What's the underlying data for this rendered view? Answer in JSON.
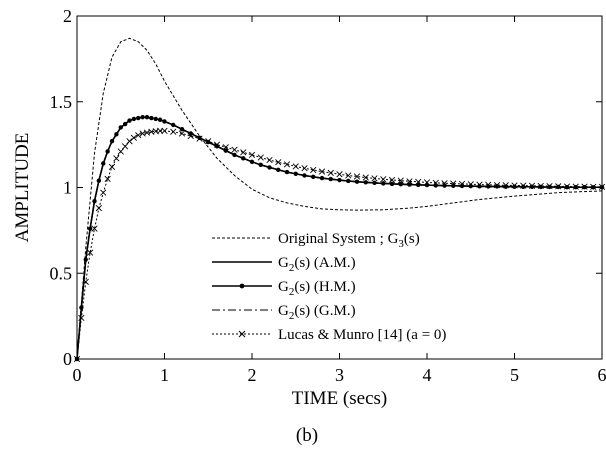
{
  "chart_data": {
    "type": "line",
    "xlabel": "TIME (secs)",
    "ylabel": "AMPLITUDE",
    "caption": "(b)",
    "xlim": [
      0,
      6
    ],
    "ylim": [
      0,
      2
    ],
    "xticks": [
      "0",
      "1",
      "2",
      "3",
      "4",
      "5",
      "6"
    ],
    "yticks": [
      "0",
      "0.5",
      "1",
      "1.5",
      "2"
    ],
    "grid": false,
    "legend_position": "bottom-center",
    "series": [
      {
        "name": "Original System ; G3(s)",
        "legend": {
          "main": "Original System ; G",
          "sub": "3",
          "rest": "(s)"
        },
        "style": "dashed",
        "marker": "none",
        "color": "#000000",
        "x": [
          0,
          0.1,
          0.2,
          0.3,
          0.4,
          0.5,
          0.6,
          0.7,
          0.8,
          0.9,
          1.0,
          1.2,
          1.4,
          1.6,
          1.8,
          2.0,
          2.2,
          2.4,
          2.6,
          2.8,
          3.0,
          3.2,
          3.5,
          3.8,
          4.0,
          4.3,
          4.6,
          5.0,
          5.5,
          6.0
        ],
        "y": [
          0,
          0.65,
          1.2,
          1.55,
          1.76,
          1.85,
          1.87,
          1.85,
          1.8,
          1.72,
          1.62,
          1.45,
          1.3,
          1.17,
          1.07,
          0.99,
          0.94,
          0.91,
          0.89,
          0.875,
          0.87,
          0.868,
          0.87,
          0.88,
          0.89,
          0.91,
          0.93,
          0.95,
          0.97,
          0.98
        ]
      },
      {
        "name": "G2(s) (A.M.)",
        "legend": {
          "main": "G",
          "sub": "2",
          "rest": "(s) (A.M.)"
        },
        "style": "solid",
        "marker": "none",
        "color": "#000000",
        "x": [
          0,
          0.05,
          0.1,
          0.15,
          0.2,
          0.25,
          0.3,
          0.35,
          0.4,
          0.45,
          0.5,
          0.55,
          0.6,
          0.65,
          0.7,
          0.75,
          0.8,
          0.85,
          0.9,
          0.95,
          1.0,
          1.1,
          1.2,
          1.3,
          1.4,
          1.5,
          1.6,
          1.7,
          1.8,
          1.9,
          2.0,
          2.1,
          2.2,
          2.3,
          2.4,
          2.5,
          2.6,
          2.7,
          2.8,
          2.9,
          3.0,
          3.1,
          3.2,
          3.3,
          3.4,
          3.5,
          3.6,
          3.7,
          3.8,
          3.9,
          4.0,
          4.1,
          4.2,
          4.3,
          4.4,
          4.5,
          4.6,
          4.7,
          4.8,
          4.9,
          5.0,
          5.1,
          5.2,
          5.3,
          5.4,
          5.5,
          5.6,
          5.7,
          5.8,
          5.9,
          6.0
        ],
        "y": [
          0,
          0.3,
          0.58,
          0.76,
          0.92,
          1.04,
          1.14,
          1.21,
          1.27,
          1.31,
          1.35,
          1.37,
          1.39,
          1.4,
          1.405,
          1.41,
          1.41,
          1.405,
          1.4,
          1.395,
          1.385,
          1.365,
          1.34,
          1.315,
          1.29,
          1.265,
          1.24,
          1.215,
          1.19,
          1.17,
          1.15,
          1.132,
          1.117,
          1.103,
          1.09,
          1.08,
          1.07,
          1.062,
          1.055,
          1.049,
          1.043,
          1.038,
          1.034,
          1.03,
          1.027,
          1.024,
          1.021,
          1.019,
          1.017,
          1.015,
          1.014,
          1.012,
          1.011,
          1.01,
          1.009,
          1.008,
          1.007,
          1.006,
          1.006,
          1.005,
          1.005,
          1.004,
          1.004,
          1.003,
          1.003,
          1.003,
          1.002,
          1.002,
          1.002,
          1.001,
          1.001
        ]
      },
      {
        "name": "G2(s) (H.M.)",
        "legend": {
          "main": "G",
          "sub": "2",
          "rest": "(s) (H.M.)"
        },
        "style": "solid",
        "marker": "dot",
        "color": "#000000",
        "x": [
          0,
          0.05,
          0.1,
          0.15,
          0.2,
          0.25,
          0.3,
          0.35,
          0.4,
          0.45,
          0.5,
          0.55,
          0.6,
          0.65,
          0.7,
          0.75,
          0.8,
          0.85,
          0.9,
          0.95,
          1.0,
          1.1,
          1.2,
          1.3,
          1.4,
          1.5,
          1.6,
          1.7,
          1.8,
          1.9,
          2.0,
          2.1,
          2.2,
          2.3,
          2.4,
          2.5,
          2.6,
          2.7,
          2.8,
          2.9,
          3.0,
          3.1,
          3.2,
          3.3,
          3.4,
          3.5,
          3.6,
          3.7,
          3.8,
          3.9,
          4.0,
          4.1,
          4.2,
          4.3,
          4.4,
          4.5,
          4.6,
          4.7,
          4.8,
          4.9,
          5.0,
          5.1,
          5.2,
          5.3,
          5.4,
          5.5,
          5.6,
          5.7,
          5.8,
          5.9,
          6.0
        ],
        "y": [
          0,
          0.3,
          0.58,
          0.76,
          0.92,
          1.04,
          1.14,
          1.21,
          1.27,
          1.31,
          1.35,
          1.37,
          1.39,
          1.4,
          1.405,
          1.41,
          1.41,
          1.405,
          1.4,
          1.395,
          1.385,
          1.365,
          1.34,
          1.315,
          1.29,
          1.265,
          1.24,
          1.215,
          1.19,
          1.17,
          1.15,
          1.132,
          1.117,
          1.103,
          1.09,
          1.08,
          1.07,
          1.062,
          1.055,
          1.049,
          1.043,
          1.038,
          1.034,
          1.03,
          1.027,
          1.024,
          1.021,
          1.019,
          1.017,
          1.015,
          1.014,
          1.012,
          1.011,
          1.01,
          1.009,
          1.008,
          1.007,
          1.006,
          1.006,
          1.005,
          1.005,
          1.004,
          1.004,
          1.003,
          1.003,
          1.003,
          1.002,
          1.002,
          1.002,
          1.001,
          1.001
        ]
      },
      {
        "name": "G2(s) (G.M.)",
        "legend": {
          "main": "G",
          "sub": "2",
          "rest": "(s) (G.M.)"
        },
        "style": "dashdot",
        "marker": "none",
        "color": "#000000",
        "x": [
          0,
          0.05,
          0.1,
          0.15,
          0.2,
          0.25,
          0.3,
          0.35,
          0.4,
          0.45,
          0.5,
          0.55,
          0.6,
          0.65,
          0.7,
          0.75,
          0.8,
          0.85,
          0.9,
          0.95,
          1.0,
          1.1,
          1.2,
          1.3,
          1.4,
          1.5,
          1.6,
          1.7,
          1.8,
          1.9,
          2.0,
          2.1,
          2.2,
          2.3,
          2.4,
          2.5,
          2.6,
          2.7,
          2.8,
          2.9,
          3.0,
          3.1,
          3.2,
          3.3,
          3.4,
          3.5,
          3.6,
          3.7,
          3.8,
          3.9,
          4.0,
          4.1,
          4.2,
          4.3,
          4.4,
          4.5,
          4.6,
          4.7,
          4.8,
          4.9,
          5.0,
          5.1,
          5.2,
          5.3,
          5.4,
          5.5,
          5.6,
          5.7,
          5.8,
          5.9,
          6.0
        ],
        "y": [
          0,
          0.3,
          0.58,
          0.76,
          0.92,
          1.04,
          1.14,
          1.21,
          1.27,
          1.31,
          1.35,
          1.37,
          1.39,
          1.4,
          1.405,
          1.41,
          1.41,
          1.405,
          1.4,
          1.395,
          1.385,
          1.365,
          1.34,
          1.315,
          1.29,
          1.265,
          1.24,
          1.215,
          1.19,
          1.17,
          1.15,
          1.132,
          1.117,
          1.103,
          1.09,
          1.08,
          1.07,
          1.062,
          1.055,
          1.049,
          1.043,
          1.038,
          1.034,
          1.03,
          1.027,
          1.024,
          1.021,
          1.019,
          1.017,
          1.015,
          1.014,
          1.012,
          1.011,
          1.01,
          1.009,
          1.008,
          1.007,
          1.006,
          1.006,
          1.005,
          1.005,
          1.004,
          1.004,
          1.003,
          1.003,
          1.003,
          1.002,
          1.002,
          1.002,
          1.001,
          1.001
        ]
      },
      {
        "name": "Lucas & Munro [14] (a = 0)",
        "legend": {
          "main": "Lucas & Munro [14] (a = 0)",
          "sub": "",
          "rest": ""
        },
        "style": "dotted",
        "marker": "x",
        "color": "#000000",
        "x": [
          0,
          0.05,
          0.1,
          0.15,
          0.2,
          0.25,
          0.3,
          0.35,
          0.4,
          0.45,
          0.5,
          0.55,
          0.6,
          0.65,
          0.7,
          0.75,
          0.8,
          0.85,
          0.9,
          0.95,
          1.0,
          1.1,
          1.2,
          1.3,
          1.4,
          1.5,
          1.6,
          1.7,
          1.8,
          1.9,
          2.0,
          2.1,
          2.2,
          2.3,
          2.4,
          2.5,
          2.6,
          2.7,
          2.8,
          2.9,
          3.0,
          3.1,
          3.2,
          3.3,
          3.4,
          3.5,
          3.6,
          3.7,
          3.8,
          3.9,
          4.0,
          4.1,
          4.2,
          4.3,
          4.4,
          4.5,
          4.6,
          4.7,
          4.8,
          4.9,
          5.0,
          5.1,
          5.2,
          5.3,
          5.4,
          5.5,
          5.6,
          5.7,
          5.8,
          5.9,
          6.0
        ],
        "y": [
          0,
          0.24,
          0.45,
          0.62,
          0.76,
          0.88,
          0.97,
          1.05,
          1.12,
          1.17,
          1.21,
          1.24,
          1.27,
          1.29,
          1.305,
          1.315,
          1.32,
          1.325,
          1.328,
          1.33,
          1.33,
          1.325,
          1.315,
          1.3,
          1.285,
          1.27,
          1.25,
          1.235,
          1.22,
          1.205,
          1.19,
          1.175,
          1.16,
          1.147,
          1.135,
          1.123,
          1.112,
          1.102,
          1.093,
          1.085,
          1.077,
          1.07,
          1.064,
          1.058,
          1.053,
          1.048,
          1.044,
          1.04,
          1.036,
          1.033,
          1.03,
          1.027,
          1.025,
          1.023,
          1.021,
          1.019,
          1.017,
          1.016,
          1.014,
          1.013,
          1.012,
          1.011,
          1.01,
          1.009,
          1.008,
          1.007,
          1.006,
          1.005,
          1.005,
          1.004,
          1.004
        ]
      }
    ]
  }
}
